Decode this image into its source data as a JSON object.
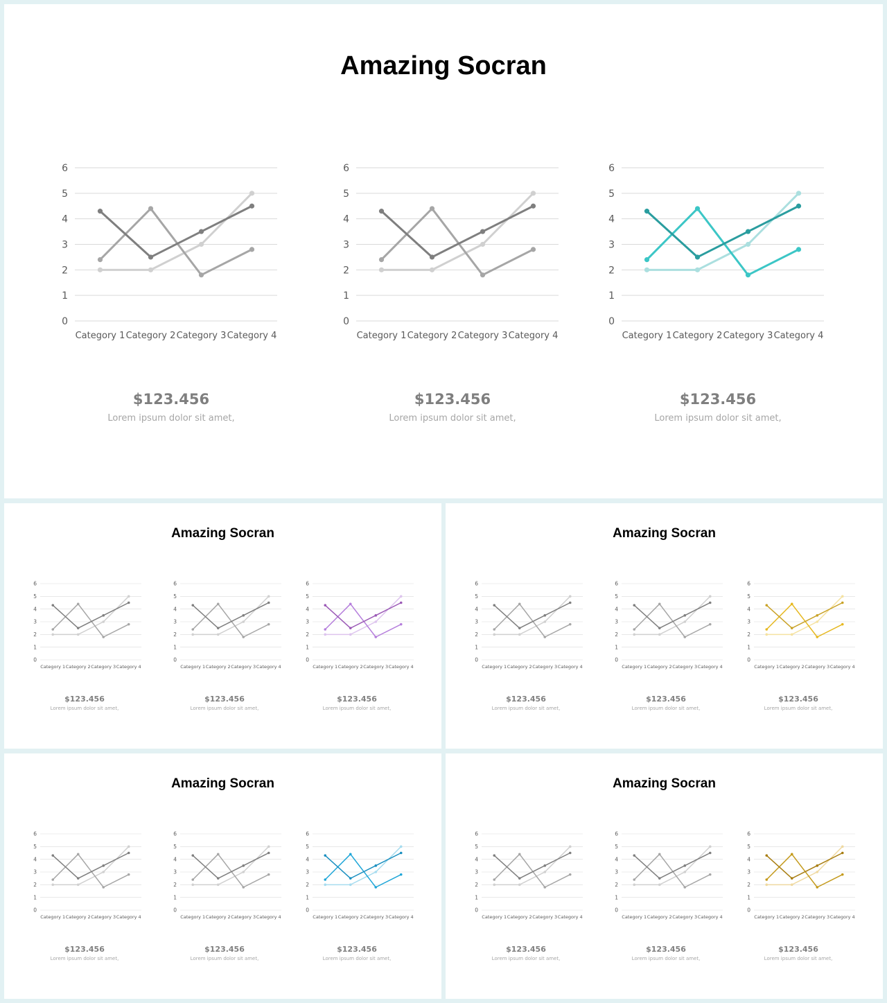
{
  "slides": [
    {
      "title": "Amazing Socran",
      "panels": [
        {
          "value": "$123.456",
          "caption": "Lorem ipsum dolor sit amet,",
          "colors": [
            "#7f7f7f",
            "#a6a6a6",
            "#d0d0d0"
          ]
        },
        {
          "value": "$123.456",
          "caption": "Lorem ipsum dolor sit amet,",
          "colors": [
            "#7f7f7f",
            "#a6a6a6",
            "#d0d0d0"
          ]
        },
        {
          "value": "$123.456",
          "caption": "Lorem ipsum dolor sit amet,",
          "colors": [
            "#2a9d9f",
            "#3cc6c6",
            "#abdfdf"
          ]
        }
      ]
    },
    {
      "title": "Amazing Socran",
      "panels": [
        {
          "value": "$123.456",
          "caption": "Lorem ipsum dolor sit amet,",
          "colors": [
            "#7f7f7f",
            "#a6a6a6",
            "#d0d0d0"
          ]
        },
        {
          "value": "$123.456",
          "caption": "Lorem ipsum dolor sit amet,",
          "colors": [
            "#7f7f7f",
            "#a6a6a6",
            "#d0d0d0"
          ]
        },
        {
          "value": "$123.456",
          "caption": "Lorem ipsum dolor sit amet,",
          "colors": [
            "#9b59b6",
            "#b57edc",
            "#ddc4ee"
          ]
        }
      ]
    },
    {
      "title": "Amazing Socran",
      "panels": [
        {
          "value": "$123.456",
          "caption": "Lorem ipsum dolor sit amet,",
          "colors": [
            "#7f7f7f",
            "#a6a6a6",
            "#d0d0d0"
          ]
        },
        {
          "value": "$123.456",
          "caption": "Lorem ipsum dolor sit amet,",
          "colors": [
            "#7f7f7f",
            "#a6a6a6",
            "#d0d0d0"
          ]
        },
        {
          "value": "$123.456",
          "caption": "Lorem ipsum dolor sit amet,",
          "colors": [
            "#c9a227",
            "#e6b820",
            "#f5e2a0"
          ]
        }
      ]
    },
    {
      "title": "Amazing Socran",
      "panels": [
        {
          "value": "$123.456",
          "caption": "Lorem ipsum dolor sit amet,",
          "colors": [
            "#7f7f7f",
            "#a6a6a6",
            "#d0d0d0"
          ]
        },
        {
          "value": "$123.456",
          "caption": "Lorem ipsum dolor sit amet,",
          "colors": [
            "#7f7f7f",
            "#a6a6a6",
            "#d0d0d0"
          ]
        },
        {
          "value": "$123.456",
          "caption": "Lorem ipsum dolor sit amet,",
          "colors": [
            "#1a8fc0",
            "#1fa6d8",
            "#a6dcef"
          ]
        }
      ]
    },
    {
      "title": "Amazing Socran",
      "panels": [
        {
          "value": "$123.456",
          "caption": "Lorem ipsum dolor sit amet,",
          "colors": [
            "#7f7f7f",
            "#a6a6a6",
            "#d0d0d0"
          ]
        },
        {
          "value": "$123.456",
          "caption": "Lorem ipsum dolor sit amet,",
          "colors": [
            "#7f7f7f",
            "#a6a6a6",
            "#d0d0d0"
          ]
        },
        {
          "value": "$123.456",
          "caption": "Lorem ipsum dolor sit amet,",
          "colors": [
            "#a87d10",
            "#c49a1c",
            "#efd9a0"
          ]
        }
      ]
    }
  ],
  "chart_data": {
    "type": "line",
    "categories": [
      "Category 1",
      "Category 2",
      "Category 3",
      "Category 4"
    ],
    "series": [
      {
        "values": [
          4.3,
          2.5,
          3.5,
          4.5
        ]
      },
      {
        "values": [
          2.4,
          4.4,
          1.8,
          2.8
        ]
      },
      {
        "values": [
          2.0,
          2.0,
          3.0,
          5.0
        ]
      }
    ],
    "yticks": [
      0,
      1,
      2,
      3,
      4,
      5,
      6
    ],
    "ylim": [
      0,
      6
    ],
    "grid": true,
    "legend": "none"
  }
}
